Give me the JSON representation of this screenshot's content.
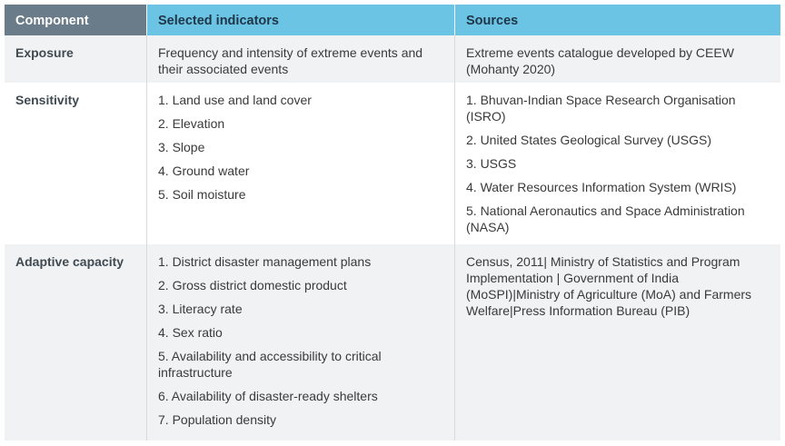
{
  "header": {
    "component": "Component",
    "indicators": "Selected indicators",
    "sources": "Sources"
  },
  "rows": [
    {
      "component": "Exposure",
      "indicators_text": "Frequency and intensity of extreme events and their associated events",
      "sources_text": "Extreme events catalogue developed by CEEW (Mohanty 2020)"
    },
    {
      "component": "Sensitivity",
      "indicators": [
        "1. Land use and land cover",
        "2. Elevation",
        "3. Slope",
        "4. Ground water",
        "5. Soil moisture"
      ],
      "sources": [
        "1. Bhuvan-Indian Space Research Organisation (ISRO)",
        "2. United States Geological Survey (USGS)",
        "3. USGS",
        "4. Water Resources Information System (WRIS)",
        "5.  National Aeronautics and Space Administration (NASA)"
      ]
    },
    {
      "component": "Adaptive capacity",
      "indicators": [
        "1. District disaster management plans",
        "2. Gross district domestic product",
        "3. Literacy rate",
        "4. Sex ratio",
        "5. Availability and accessibility to critical infrastructure",
        "6. Availability of disaster-ready shelters",
        "7. Population density"
      ],
      "sources_text": "Census, 2011| Ministry of Statistics and Program Implementation | Government of India (MoSPI)|Ministry of Agriculture (MoA) and Farmers Welfare|Press Information Bureau (PIB)"
    }
  ],
  "colors": {
    "header_blue": "#6cc4e4",
    "header_gray": "#6a7c89",
    "stripe": "#f1f2f3"
  }
}
